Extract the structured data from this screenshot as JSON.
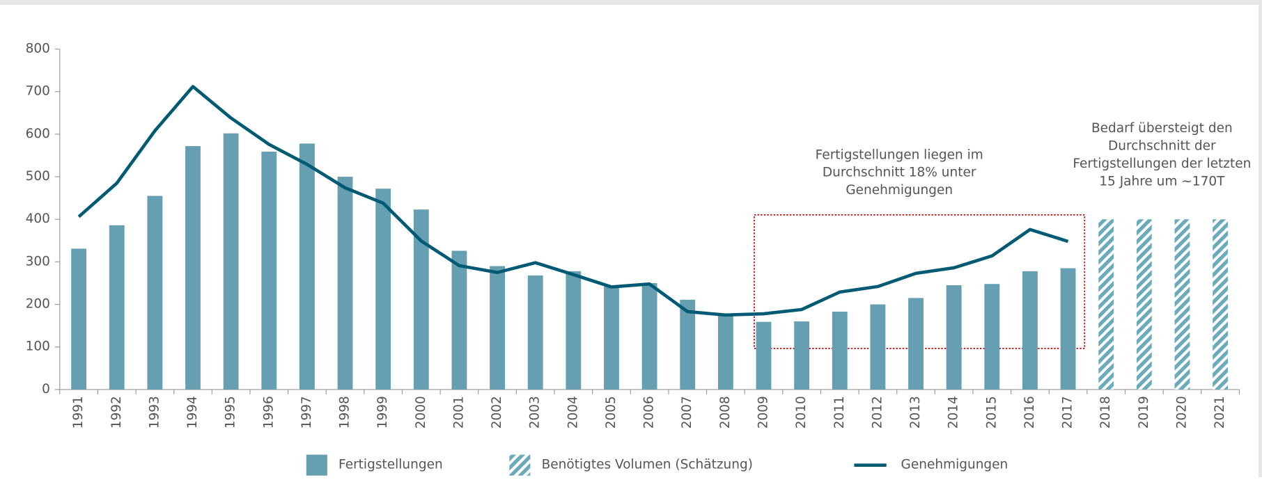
{
  "chart_data": {
    "type": "bar",
    "categories": [
      "1991",
      "1992",
      "1993",
      "1994",
      "1995",
      "1996",
      "1997",
      "1998",
      "1999",
      "2000",
      "2001",
      "2002",
      "2003",
      "2004",
      "2005",
      "2006",
      "2007",
      "2008",
      "2009",
      "2010",
      "2011",
      "2012",
      "2013",
      "2014",
      "2015",
      "2016",
      "2017",
      "2018",
      "2019",
      "2020",
      "2021"
    ],
    "series": [
      {
        "name": "Fertigstellungen",
        "type": "bar",
        "color": "#669fb1",
        "values": [
          331,
          386,
          455,
          572,
          602,
          559,
          578,
          500,
          472,
          423,
          326,
          290,
          268,
          278,
          242,
          250,
          211,
          176,
          159,
          160,
          183,
          200,
          215,
          245,
          248,
          278,
          285,
          null,
          null,
          null,
          null
        ]
      },
      {
        "name": "Benötigtes Volumen (Schätzung)",
        "type": "hatched-bar",
        "color": "#6aaabb",
        "values": [
          null,
          null,
          null,
          null,
          null,
          null,
          null,
          null,
          null,
          null,
          null,
          null,
          null,
          null,
          null,
          null,
          null,
          null,
          null,
          null,
          null,
          null,
          null,
          null,
          null,
          null,
          null,
          400,
          400,
          400,
          400
        ]
      },
      {
        "name": "Genehmigungen",
        "type": "line",
        "color": "#005a73",
        "values": [
          406,
          485,
          608,
          712,
          638,
          576,
          529,
          474,
          438,
          349,
          291,
          275,
          298,
          270,
          241,
          248,
          183,
          175,
          178,
          188,
          229,
          242,
          273,
          286,
          314,
          376,
          348,
          null,
          null,
          null,
          null
        ]
      }
    ],
    "ylim": [
      0,
      800
    ],
    "yticks": [
      0,
      100,
      200,
      300,
      400,
      500,
      600,
      700,
      800
    ],
    "annotations": [
      {
        "lines": [
          "Fertigstellungen liegen im",
          "Durchschnitt 18% unter",
          "Genehmigungen"
        ]
      },
      {
        "lines": [
          "Bedarf übersteigt den",
          "Durchschnitt der",
          "Fertigstellungen der letzten",
          "15 Jahre um ~170T"
        ]
      }
    ]
  }
}
